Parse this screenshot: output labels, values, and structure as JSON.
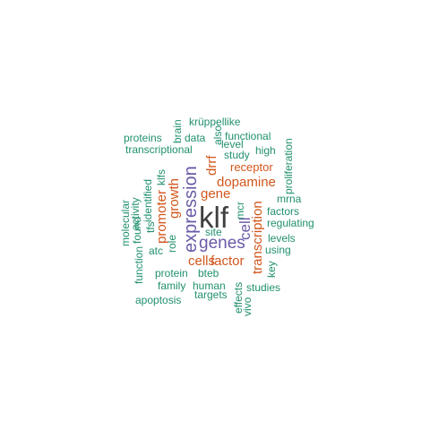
{
  "words": {
    "klf": "klf",
    "expression": "expression",
    "genes": "genes",
    "promoter": "promoter",
    "growth": "growth",
    "drrf": "drrf",
    "gene": "gene",
    "dopamine": "dopamine",
    "receptor": "receptor",
    "cell": "cell",
    "transcription": "transcription",
    "cells": "cells",
    "factor": "factor",
    "kruppellike": "krüppellike",
    "brain": "brain",
    "proteins": "proteins",
    "data": "data",
    "also": "also",
    "functional": "functional",
    "transcriptional": "transcriptional",
    "level": "level",
    "high": "high",
    "proliferation": "proliferation",
    "study": "study",
    "klfs": "klfs",
    "identified": "identified",
    "mrna": "mrna",
    "activity": "activity",
    "tfs": "tfs",
    "molecular": "molecular",
    "found": "found",
    "mcr": "mcr",
    "factors": "factors",
    "regulating": "regulating",
    "role": "role",
    "site": "site",
    "levels": "levels",
    "atc": "atc",
    "using": "using",
    "function": "function",
    "key": "key",
    "protein": "protein",
    "bteb": "bteb",
    "family": "family",
    "human": "human",
    "studies": "studies",
    "targets": "targets",
    "effects": "effects",
    "vivo": "vivo",
    "apoptosis": "apoptosis"
  },
  "colors": {
    "dark": "#3f3f3f",
    "purple": "#6a5aa6",
    "orange": "#d2561c",
    "green": "#21906f"
  }
}
